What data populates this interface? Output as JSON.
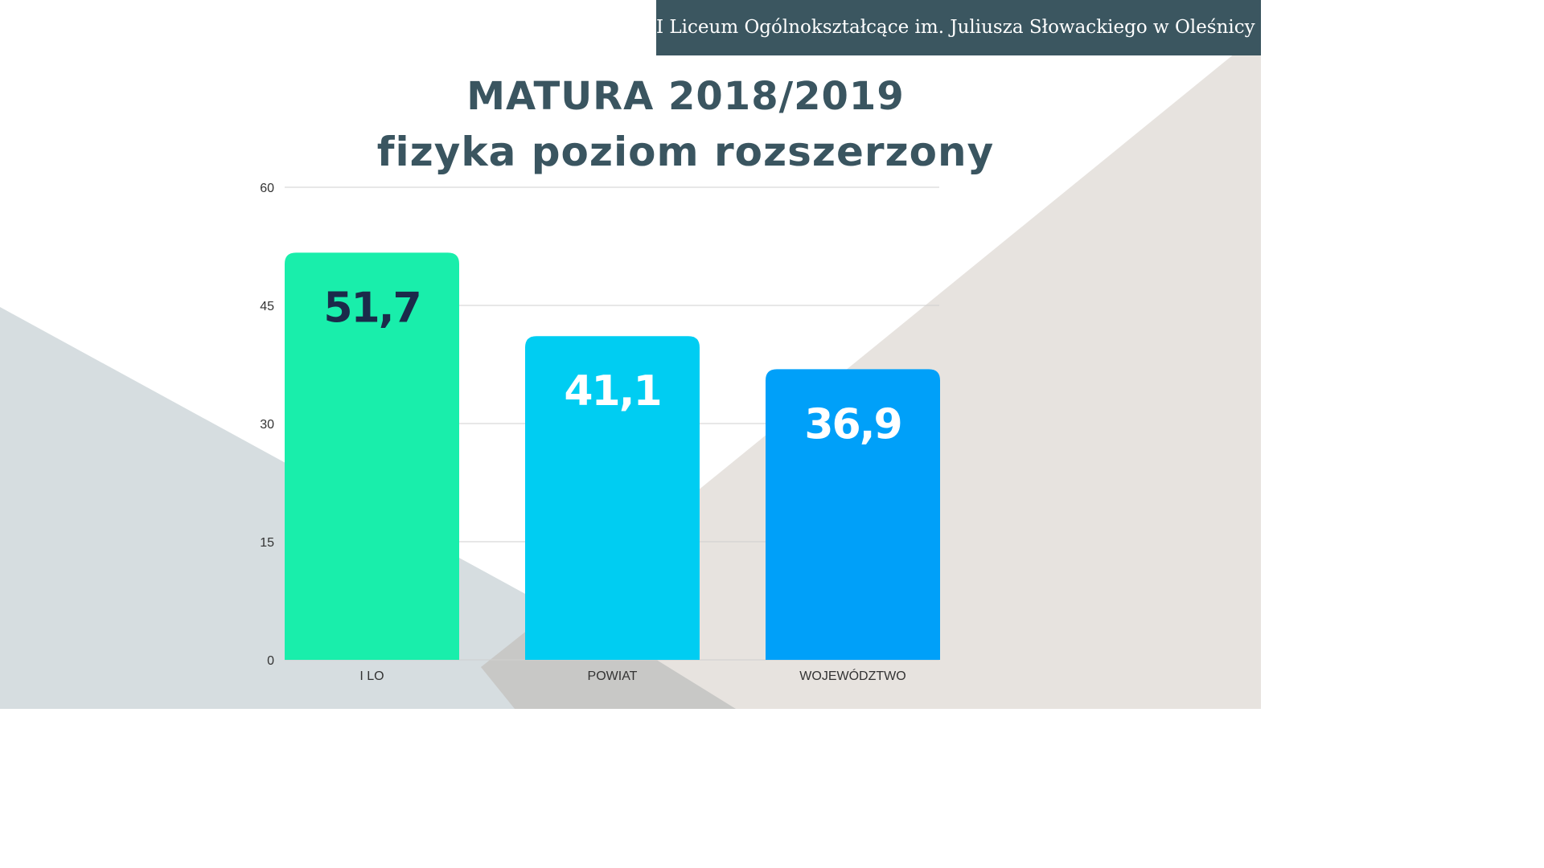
{
  "header": {
    "school": "I Liceum Ogólnokształcące im. Juliusza Słowackiego w Oleśnicy"
  },
  "colors": {
    "banner": "#3b5660",
    "title": "#3a5560"
  },
  "chart_data": {
    "type": "bar",
    "title": "MATURA 2018/2019",
    "subtitle": "fizyka poziom rozszerzony",
    "categories": [
      "I LO",
      "POWIAT",
      "WOJEWÓDZTWO"
    ],
    "values": [
      51.7,
      41.1,
      36.9
    ],
    "value_labels": [
      "51,7",
      "41,1",
      "36,9"
    ],
    "bar_colors": [
      "#19eeab",
      "#00cdf2",
      "#00a0f9"
    ],
    "label_colors": [
      "#1b2a4a",
      "#ffffff",
      "#ffffff"
    ],
    "ylim": [
      0,
      60
    ],
    "yticks": [
      0,
      15,
      30,
      45,
      60
    ],
    "grid": true,
    "xlabel": "",
    "ylabel": ""
  }
}
